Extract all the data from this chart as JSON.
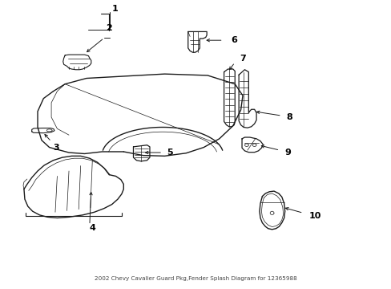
{
  "title": "2002 Chevy Cavalier Guard Pkg,Fender Splash Diagram for 12365988",
  "bg_color": "#ffffff",
  "line_color": "#1a1a1a",
  "label_color": "#000000",
  "fig_width": 4.89,
  "fig_height": 3.6,
  "dpi": 100
}
